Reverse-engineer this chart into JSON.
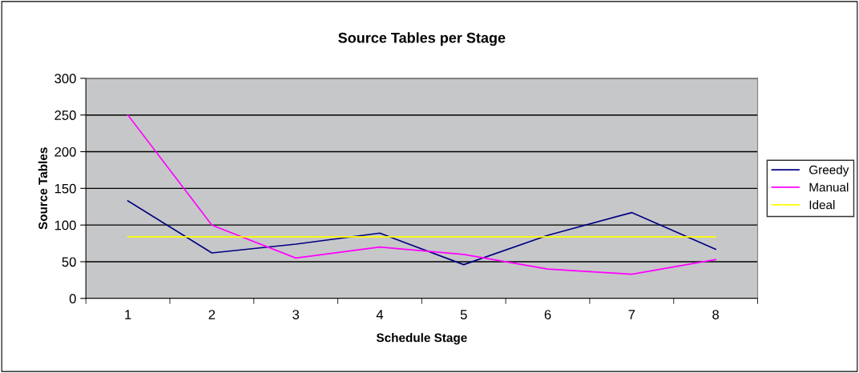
{
  "chart_data": {
    "type": "line",
    "title": "Source Tables per Stage",
    "xlabel": "Schedule Stage",
    "ylabel": "Source Tables",
    "categories": [
      "1",
      "2",
      "3",
      "4",
      "5",
      "6",
      "7",
      "8"
    ],
    "series": [
      {
        "name": "Greedy",
        "color": "#000080",
        "values": [
          133,
          62,
          74,
          89,
          46,
          86,
          117,
          67
        ]
      },
      {
        "name": "Manual",
        "color": "#ff00ff",
        "values": [
          250,
          100,
          55,
          70,
          60,
          40,
          33,
          53
        ]
      },
      {
        "name": "Ideal",
        "color": "#ffff00",
        "values": [
          84,
          84,
          84,
          84,
          84,
          84,
          84,
          84
        ]
      }
    ],
    "ylim": [
      0,
      300
    ],
    "yticks": [
      0,
      50,
      100,
      150,
      200,
      250,
      300
    ],
    "grid": "y",
    "legend": "right",
    "marker": "none",
    "line_style": "solid"
  }
}
